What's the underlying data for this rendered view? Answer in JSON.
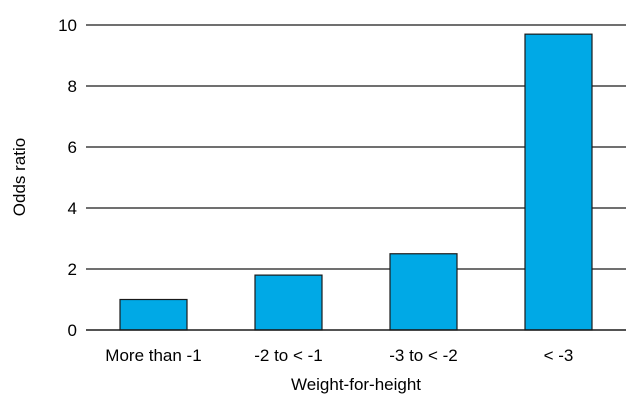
{
  "chart_data": {
    "type": "bar",
    "title": "",
    "xlabel": "Weight-for-height",
    "ylabel": "Odds ratio",
    "categories": [
      "More than -1",
      "-2 to < -1",
      "-3 to < -2",
      "< -3"
    ],
    "values": [
      1.0,
      1.8,
      2.5,
      9.7
    ],
    "ylim": [
      0,
      10
    ],
    "yticks": [
      "0",
      "2",
      "4",
      "6",
      "8",
      "10"
    ],
    "grid": "horizontal",
    "bar_color": "#00a9e6",
    "bar_edge_color": "#1a1a1a"
  }
}
